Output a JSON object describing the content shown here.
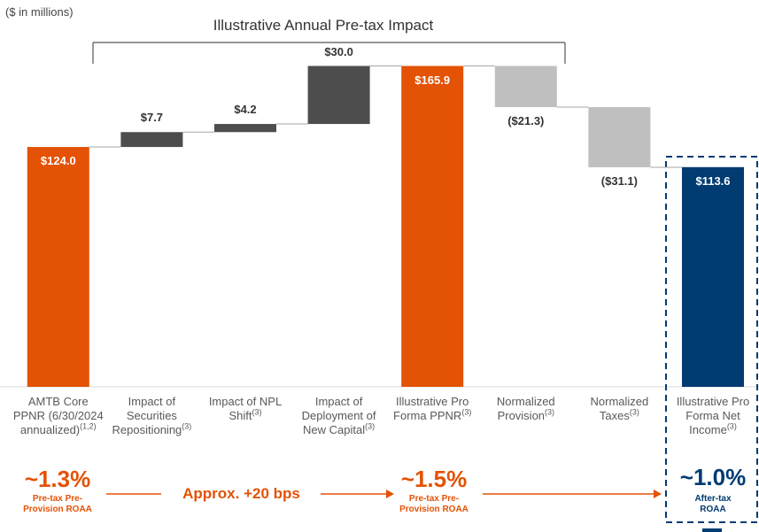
{
  "chart_data": {
    "type": "waterfall",
    "title": "Illustrative Annual Pre-tax Impact",
    "subtitle": "($ in millions)",
    "categories": [
      "AMTB Core PPNR (6/30/2024 annualized)",
      "Impact of Securities Repositioning",
      "Impact of NPL Shift",
      "Impact of Deployment of New Capital",
      "Illustrative Pro Forma PPNR",
      "Normalized Provision",
      "Normalized Taxes",
      "Illustrative Pro Forma Net Income"
    ],
    "category_notes": [
      "(1,2)",
      "(3)",
      "(3)",
      "(3)",
      "(3)",
      "(3)",
      "(3)",
      "(3)"
    ],
    "values": [
      124.0,
      7.7,
      4.2,
      30.0,
      165.9,
      -21.3,
      -31.1,
      113.6
    ],
    "value_labels": [
      "$124.0",
      "$7.7",
      "$4.2",
      "$30.0",
      "$165.9",
      "($21.3)",
      "($31.1)",
      "$113.6"
    ],
    "is_total": [
      true,
      false,
      false,
      false,
      true,
      false,
      false,
      true
    ],
    "colors": [
      "#e35205",
      "#4d4d4d",
      "#4d4d4d",
      "#4d4d4d",
      "#e35205",
      "#bfbfbf",
      "#bfbfbf",
      "#003b71"
    ],
    "ylim": [
      0,
      200
    ],
    "annotations": [
      {
        "text": "~1.3%",
        "subtext": "Pre-tax Pre-Provision ROAA"
      },
      {
        "text": "Approx. +20 bps"
      },
      {
        "text": "~1.5%",
        "subtext": "Pre-tax Pre-Provision ROAA"
      },
      {
        "text": "~1.0%",
        "subtext": "After-tax ROAA"
      }
    ]
  }
}
